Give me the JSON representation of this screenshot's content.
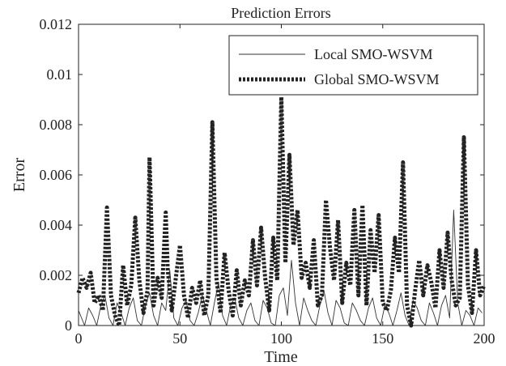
{
  "chart_data": {
    "type": "line",
    "title": "Prediction Errors",
    "xlabel": "Time",
    "ylabel": "Error",
    "xlim": [
      0,
      200
    ],
    "ylim": [
      0,
      0.012
    ],
    "xticks": [
      0,
      50,
      100,
      150,
      200
    ],
    "xtick_labels": [
      "0",
      "50",
      "100",
      "150",
      "200"
    ],
    "yticks": [
      0,
      0.002,
      0.004,
      0.006,
      0.008,
      0.01,
      0.012
    ],
    "ytick_labels": [
      "0",
      "0.002",
      "0.004",
      "0.006",
      "0.008",
      "0.01",
      "0.012"
    ],
    "grid": false,
    "legend_position": "top-right",
    "series": [
      {
        "name": "Local SMO-WSVM",
        "style": "solid-thin",
        "color": "#333333",
        "x": [
          0,
          3,
          5,
          7,
          9,
          11,
          13,
          15,
          17,
          19,
          21,
          23,
          25,
          27,
          29,
          31,
          33,
          35,
          37,
          39,
          41,
          43,
          45,
          47,
          49,
          51,
          53,
          55,
          57,
          59,
          61,
          63,
          65,
          67,
          69,
          71,
          73,
          75,
          77,
          79,
          81,
          83,
          85,
          87,
          89,
          91,
          93,
          95,
          97,
          99,
          101,
          103,
          105,
          107,
          109,
          111,
          113,
          115,
          117,
          119,
          121,
          123,
          125,
          127,
          129,
          131,
          133,
          135,
          137,
          139,
          141,
          143,
          145,
          147,
          149,
          151,
          153,
          155,
          157,
          159,
          161,
          163,
          165,
          167,
          169,
          171,
          173,
          175,
          177,
          179,
          181,
          183,
          185,
          187,
          189,
          191,
          193,
          195,
          197,
          199
        ],
        "y": [
          0.0006,
          0.0,
          0.0007,
          0.0004,
          0.0,
          0.0008,
          0.0012,
          0.0003,
          0.0,
          0.0009,
          0.0005,
          0.0,
          0.0007,
          0.0011,
          0.0002,
          0.0,
          0.0008,
          0.0013,
          0.0004,
          0.0,
          0.0009,
          0.0006,
          0.0022,
          0.0003,
          0.0,
          0.0007,
          0.001,
          0.0002,
          0.0,
          0.0005,
          0.0012,
          0.0006,
          0.0,
          0.0009,
          0.0017,
          0.0004,
          0.0,
          0.0008,
          0.0011,
          0.0003,
          0.0,
          0.0006,
          0.0009,
          0.0002,
          0.0,
          0.001,
          0.0007,
          0.0001,
          0.0,
          0.0012,
          0.0015,
          0.0004,
          0.0026,
          0.0009,
          0.0,
          0.0011,
          0.0006,
          0.0002,
          0.0,
          0.0008,
          0.0014,
          0.0005,
          0.0,
          0.001,
          0.0007,
          0.0001,
          0.0,
          0.0009,
          0.0006,
          0.0002,
          0.0,
          0.0007,
          0.0011,
          0.0003,
          0.0,
          0.0008,
          0.0005,
          0.0,
          0.0006,
          0.0013,
          0.0004,
          0.0,
          0.001,
          0.0007,
          0.0002,
          0.0,
          0.0009,
          0.0005,
          0.0,
          0.0008,
          0.0012,
          0.0003,
          0.0046,
          0.0009,
          0.0,
          0.0006,
          0.0004,
          0.0,
          0.0007,
          0.0005
        ]
      },
      {
        "name": "Global SMO-WSVM",
        "style": "dotted-thick",
        "color": "#222222",
        "x": [
          0,
          2,
          4,
          6,
          8,
          10,
          12,
          14,
          16,
          18,
          20,
          22,
          24,
          26,
          28,
          30,
          32,
          34,
          35,
          37,
          39,
          41,
          43,
          44,
          46,
          48,
          50,
          52,
          54,
          56,
          58,
          60,
          62,
          64,
          66,
          68,
          70,
          72,
          74,
          76,
          78,
          80,
          82,
          84,
          86,
          88,
          90,
          92,
          94,
          96,
          98,
          100,
          102,
          104,
          106,
          108,
          110,
          112,
          114,
          116,
          118,
          120,
          122,
          124,
          126,
          128,
          130,
          132,
          134,
          136,
          138,
          140,
          142,
          144,
          146,
          148,
          150,
          152,
          154,
          156,
          158,
          160,
          162,
          164,
          166,
          168,
          170,
          172,
          174,
          176,
          178,
          180,
          182,
          184,
          186,
          188,
          190,
          192,
          194,
          196,
          198,
          200
        ],
        "y": [
          0.0013,
          0.0019,
          0.0015,
          0.0021,
          0.0009,
          0.0012,
          0.0006,
          0.0047,
          0.0012,
          0.0004,
          0.0,
          0.0024,
          0.0008,
          0.0016,
          0.0043,
          0.0018,
          0.0005,
          0.0014,
          0.0067,
          0.0008,
          0.0019,
          0.0011,
          0.0045,
          0.0022,
          0.0006,
          0.0019,
          0.0032,
          0.0012,
          0.0003,
          0.0015,
          0.0009,
          0.0018,
          0.0004,
          0.0012,
          0.0081,
          0.0019,
          0.0005,
          0.0029,
          0.0014,
          0.0004,
          0.0022,
          0.0008,
          0.0018,
          0.0012,
          0.0034,
          0.0016,
          0.0039,
          0.0019,
          0.0006,
          0.0035,
          0.0018,
          0.0091,
          0.0025,
          0.0068,
          0.0032,
          0.0046,
          0.0019,
          0.0025,
          0.0015,
          0.0034,
          0.0008,
          0.0012,
          0.005,
          0.0031,
          0.0018,
          0.0042,
          0.0009,
          0.0025,
          0.0016,
          0.0046,
          0.0012,
          0.0048,
          0.0008,
          0.0038,
          0.0021,
          0.0044,
          0.0009,
          0.0006,
          0.0014,
          0.0035,
          0.0021,
          0.0065,
          0.0008,
          0.0,
          0.0014,
          0.0026,
          0.0012,
          0.0024,
          0.0017,
          0.0007,
          0.003,
          0.0015,
          0.0037,
          0.0018,
          0.0008,
          0.0011,
          0.0075,
          0.0016,
          0.0005,
          0.003,
          0.0012,
          0.0016
        ]
      }
    ]
  }
}
